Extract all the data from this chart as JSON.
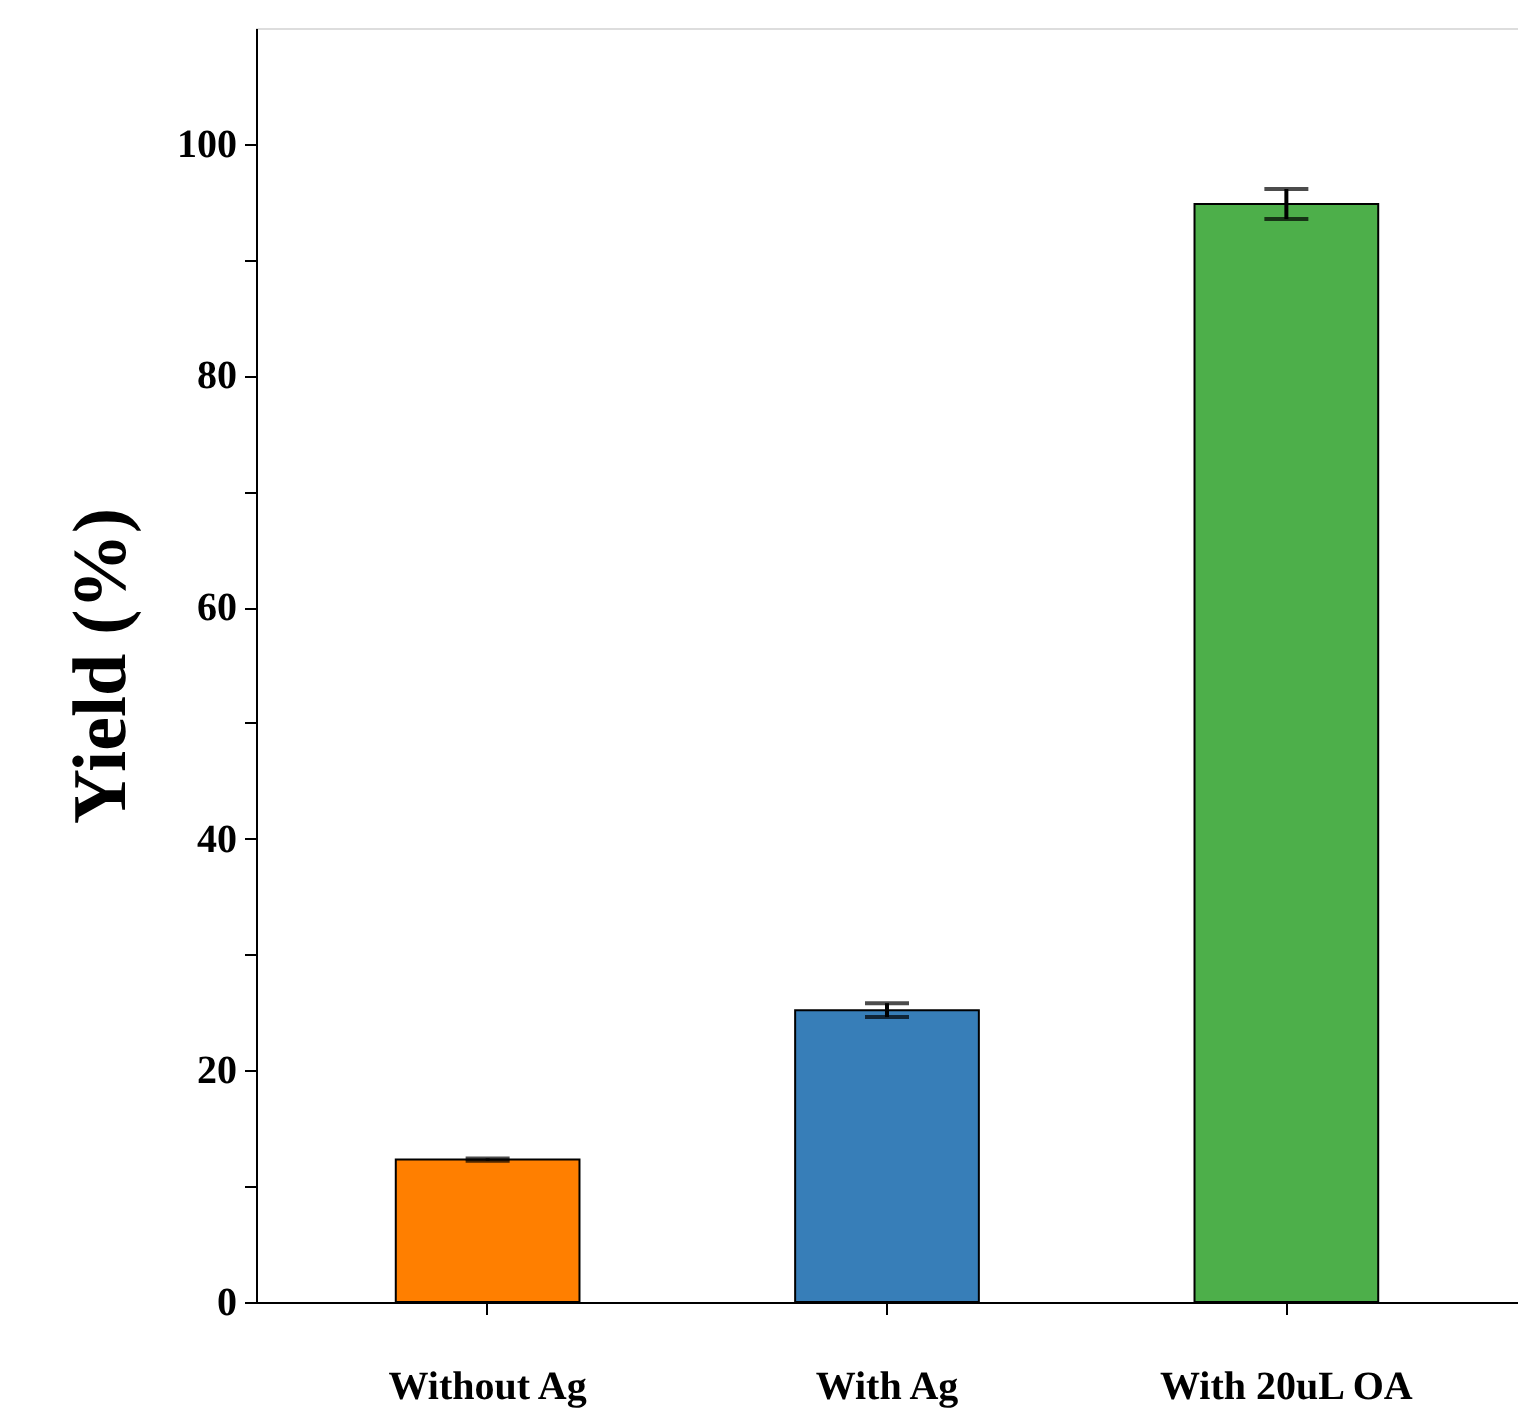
{
  "chart_data": {
    "type": "bar",
    "ylabel": "Yield (%)",
    "categories": [
      "Without Ag",
      "With Ag",
      "With 20uL OA"
    ],
    "values": [
      12.3,
      25.2,
      94.8
    ],
    "errors": [
      0.1,
      0.6,
      1.3
    ],
    "colors": [
      "#ff7f00",
      "#377eb8",
      "#4daf4a"
    ],
    "ylim": [
      0,
      110
    ],
    "yticks": [
      0,
      {
        "value": 10,
        "label": null
      },
      20,
      {
        "value": 30,
        "label": null
      },
      40,
      {
        "value": 50,
        "label": null
      },
      60,
      {
        "value": 70,
        "label": null
      },
      80,
      {
        "value": 90,
        "label": null
      },
      100
    ],
    "grid": false
  }
}
